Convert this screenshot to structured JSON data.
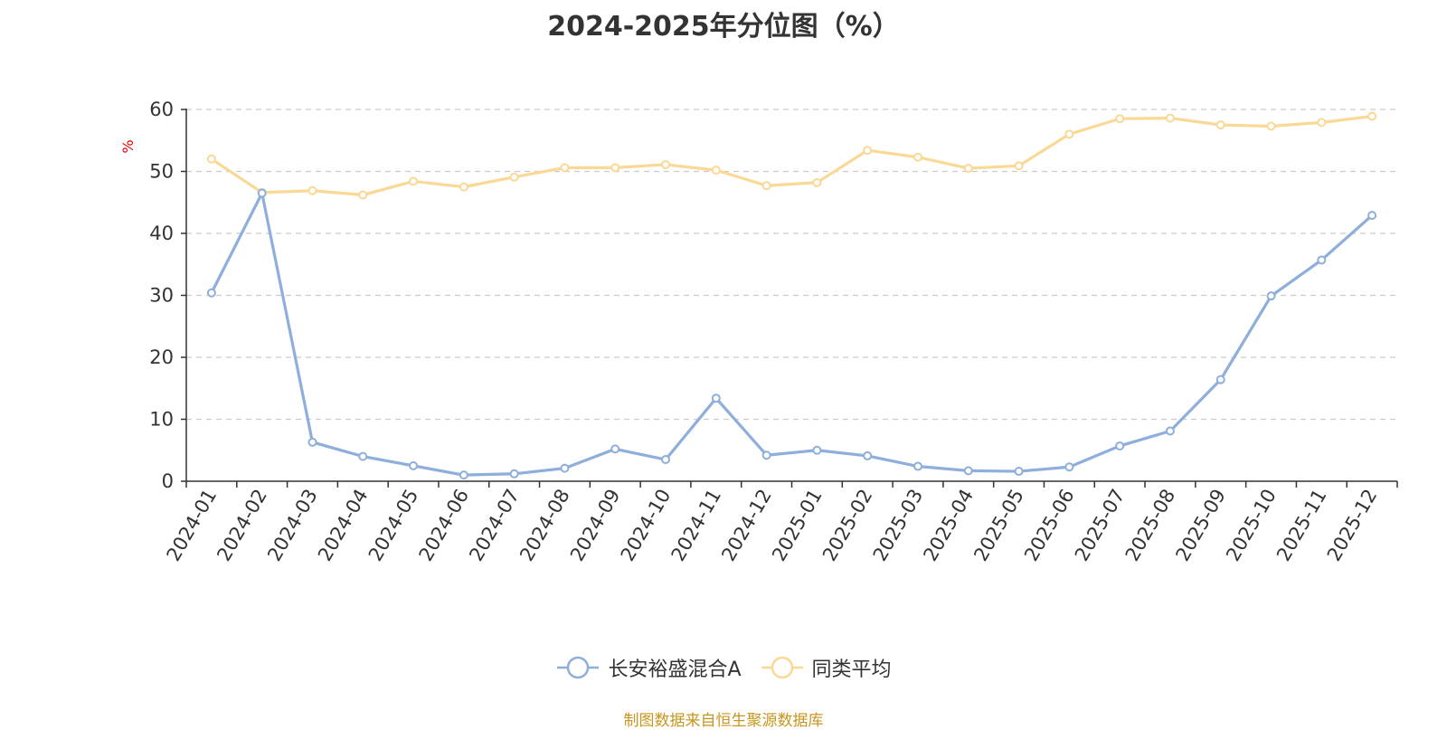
{
  "chart_data": {
    "type": "line",
    "title": "2024-2025年分位图（%）",
    "ylabel": "%",
    "xlabel": "",
    "ylim": [
      0,
      60
    ],
    "yticks": [
      0,
      10,
      20,
      30,
      40,
      50,
      60
    ],
    "grid": true,
    "legend_position": "bottom",
    "categories": [
      "2024-01",
      "2024-02",
      "2024-03",
      "2024-04",
      "2024-05",
      "2024-06",
      "2024-07",
      "2024-08",
      "2024-09",
      "2024-10",
      "2024-11",
      "2024-12",
      "2025-01",
      "2025-02",
      "2025-03",
      "2025-04",
      "2025-05",
      "2025-06",
      "2025-07",
      "2025-08",
      "2025-09",
      "2025-10",
      "2025-11",
      "2025-12"
    ],
    "series": [
      {
        "name": "长安裕盛混合A",
        "color": "#8eaedb",
        "values": [
          30.4,
          46.5,
          6.3,
          4.0,
          2.5,
          1.0,
          1.2,
          2.1,
          5.2,
          3.5,
          13.4,
          4.2,
          5.0,
          4.1,
          2.4,
          1.7,
          1.6,
          2.3,
          5.7,
          8.1,
          16.4,
          29.9,
          35.7,
          42.9
        ]
      },
      {
        "name": "同类平均",
        "color": "#fad895",
        "values": [
          52.0,
          46.6,
          46.9,
          46.2,
          48.4,
          47.5,
          49.1,
          50.6,
          50.6,
          51.1,
          50.2,
          47.7,
          48.2,
          53.4,
          52.3,
          50.5,
          50.9,
          56.0,
          58.5,
          58.6,
          57.5,
          57.3,
          57.9,
          58.9
        ]
      }
    ]
  },
  "footer": {
    "source": "制图数据来自恒生聚源数据库"
  }
}
